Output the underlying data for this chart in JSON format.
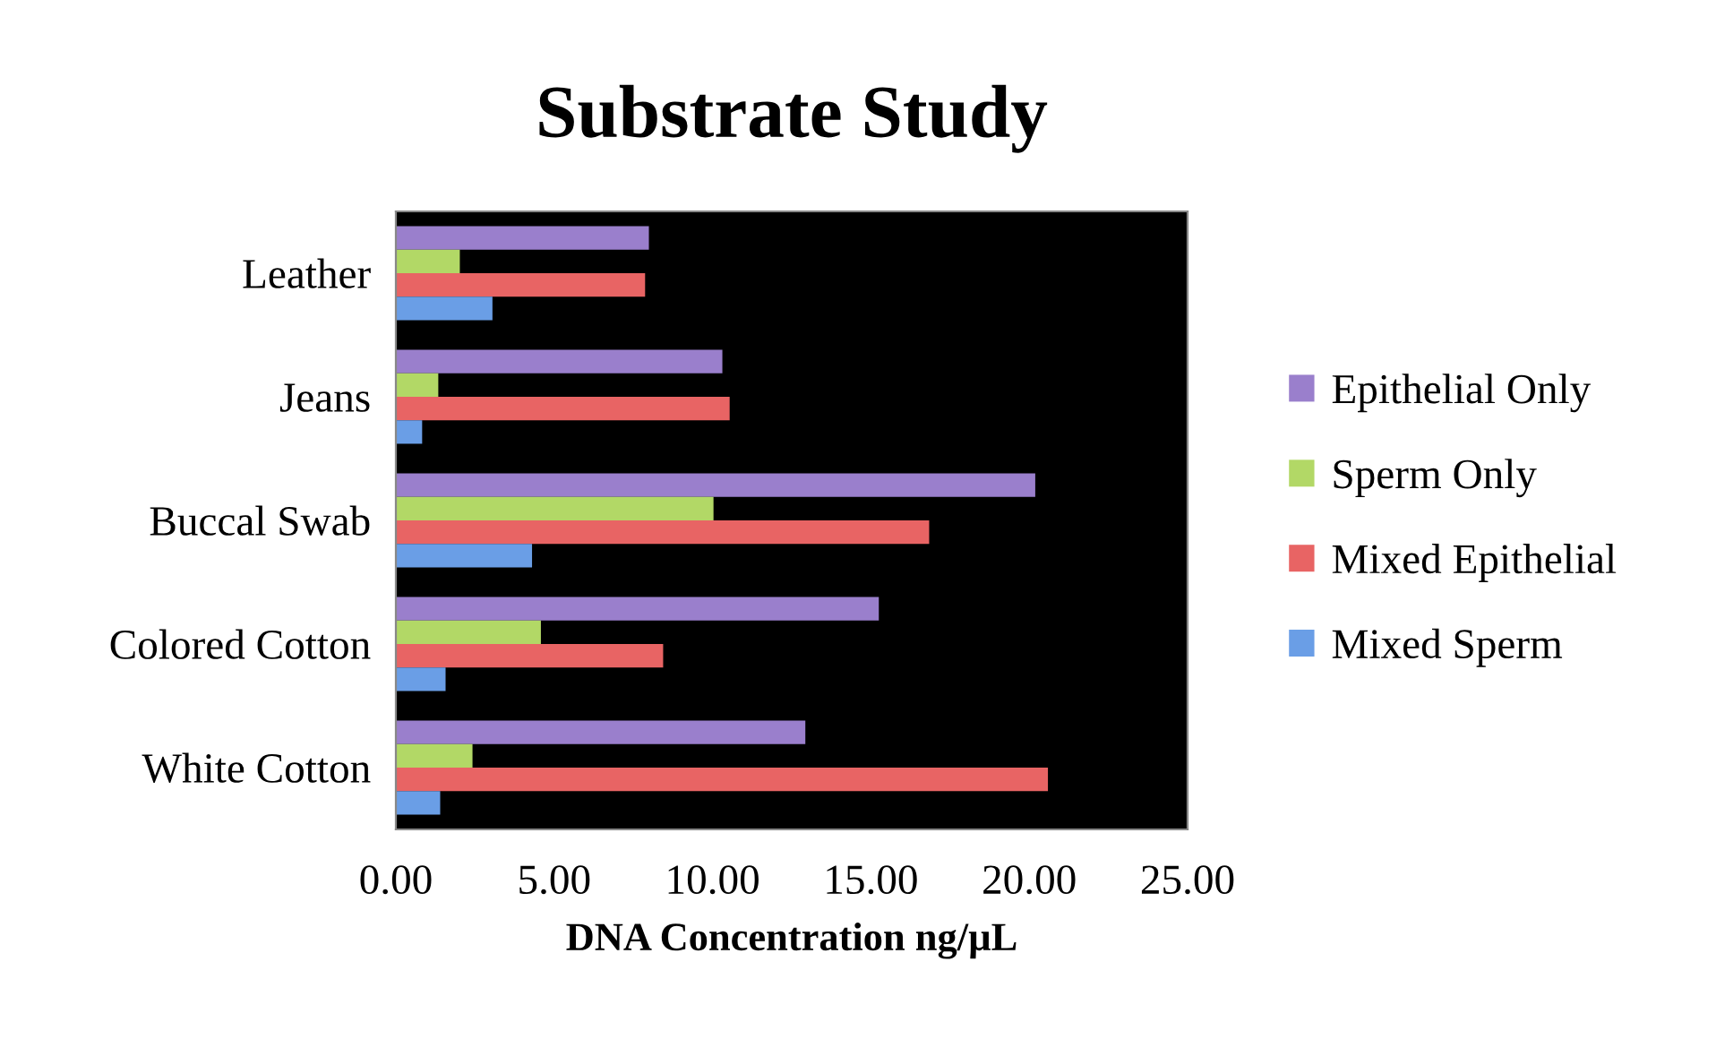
{
  "chart_data": {
    "type": "bar",
    "orientation": "horizontal",
    "title": "Substrate Study",
    "xlabel": "DNA Concentration ng/µL",
    "categories": [
      "Leather",
      "Jeans",
      "Buccal Swab",
      "Colored Cotton",
      "White Cotton"
    ],
    "series": [
      {
        "name": "Epithelial Only",
        "color": "#9a7fcc",
        "values": [
          7.99,
          10.31,
          20.19,
          15.25,
          12.93
        ]
      },
      {
        "name": "Sperm Only",
        "color": "#b2d866",
        "values": [
          2.02,
          1.34,
          10.03,
          4.58,
          2.42
        ]
      },
      {
        "name": "Mixed Epithelial",
        "color": "#e86464",
        "values": [
          7.87,
          10.54,
          16.84,
          8.44,
          20.59
        ]
      },
      {
        "name": "Mixed Sperm",
        "color": "#6a9ee6",
        "values": [
          3.05,
          0.83,
          4.3,
          1.57,
          1.4
        ]
      }
    ],
    "xlim": [
      0,
      25
    ],
    "xticks": [
      {
        "value": 0,
        "label": "0.00"
      },
      {
        "value": 5,
        "label": "5.00"
      },
      {
        "value": 10,
        "label": "10.00"
      },
      {
        "value": 15,
        "label": "15.00"
      },
      {
        "value": 20,
        "label": "20.00"
      },
      {
        "value": 25,
        "label": "25.00"
      }
    ],
    "grid": false,
    "legend": "right"
  }
}
